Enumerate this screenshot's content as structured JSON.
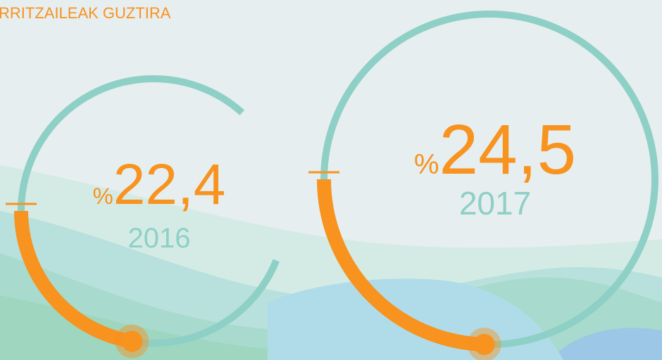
{
  "chart_data": {
    "type": "radial",
    "title": "RRITZAILEAK GUZTIRA",
    "categories": [
      "2016",
      "2017"
    ],
    "values": [
      22.4,
      24.5
    ],
    "value_labels": [
      "%22,4",
      "%24,5"
    ],
    "color": "#f7931e",
    "track_color": "#8ed0c6",
    "label_color": "#8ed0c6"
  }
}
